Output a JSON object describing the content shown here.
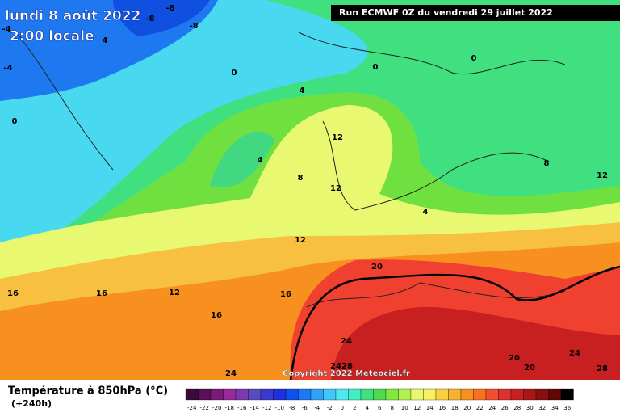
{
  "header": {
    "date": "lundi 8 août 2022",
    "time": "2:00 locale",
    "run": "Run ECMWF 0Z du vendredi 29 juillet 2022"
  },
  "map": {
    "copyright": "Copyright 2022 Meteociel.fr",
    "contour_labels": [
      "-8",
      "-8",
      "-8",
      "-4",
      "-4",
      "4",
      "0",
      "0",
      "0",
      "0",
      "4",
      "12",
      "4",
      "8",
      "12",
      "8",
      "4",
      "12",
      "12",
      "16",
      "16",
      "12",
      "16",
      "16",
      "20",
      "24",
      "20",
      "20",
      "24",
      "24",
      "28",
      "24",
      "28"
    ]
  },
  "legend": {
    "title": "Température à 850hPa (°C)",
    "lead": "(+240h)",
    "ticks": [
      "-24",
      "-22",
      "-20",
      "-18",
      "-16",
      "-14",
      "-12",
      "-10",
      "-8",
      "-6",
      "-4",
      "-2",
      "0",
      "2",
      "4",
      "6",
      "8",
      "10",
      "12",
      "14",
      "16",
      "18",
      "20",
      "22",
      "24",
      "26",
      "28",
      "30",
      "32",
      "34",
      "36"
    ],
    "colors": [
      "#3a0a3a",
      "#5a0f5a",
      "#7a1a7a",
      "#9a2a9a",
      "#7a3ab0",
      "#5a4ac0",
      "#3a3ad0",
      "#2030e0",
      "#1050f0",
      "#1e78f5",
      "#30a0f8",
      "#40c8f8",
      "#50e8f0",
      "#40f0c0",
      "#40e080",
      "#50d850",
      "#80e840",
      "#b0f050",
      "#e8f870",
      "#f8f060",
      "#f8d040",
      "#f8b030",
      "#f89020",
      "#f87020",
      "#f05030",
      "#e03030",
      "#c82020",
      "#a81818",
      "#881010",
      "#600808",
      "#000000"
    ]
  }
}
